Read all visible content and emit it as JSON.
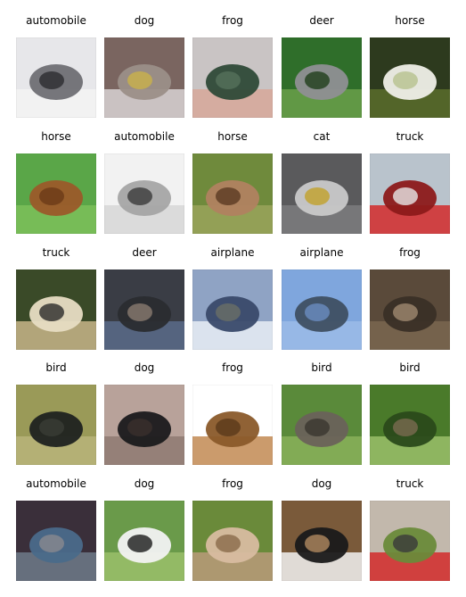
{
  "figure": {
    "rows": [
      [
        {
          "label": "automobile",
          "scene": "white car on road",
          "colors": [
            "#e7e7ea",
            "#f3f3f3",
            "#6f6f74",
            "#2c2c30"
          ]
        },
        {
          "label": "dog",
          "scene": "light dog on brown background",
          "colors": [
            "#7a6560",
            "#d8d2d3",
            "#9b8f88",
            "#c9b24a"
          ]
        },
        {
          "label": "frog",
          "scene": "frog in hand",
          "colors": [
            "#c9c4c4",
            "#d7a89a",
            "#2f4a38",
            "#55705b"
          ]
        },
        {
          "label": "deer",
          "scene": "deer on grass",
          "colors": [
            "#2f6e2a",
            "#6aa04a",
            "#8f8f93",
            "#1f3f1c"
          ]
        },
        {
          "label": "horse",
          "scene": "white horse on grass",
          "colors": [
            "#2d3a1e",
            "#5a6d2c",
            "#efefe8",
            "#b7c28f"
          ]
        }
      ],
      [
        {
          "label": "horse",
          "scene": "brown horse on grass",
          "colors": [
            "#5aa648",
            "#7cbf5a",
            "#9b5a2a",
            "#6b3a18"
          ]
        },
        {
          "label": "automobile",
          "scene": "silver car",
          "colors": [
            "#f2f2f2",
            "#d7d7d7",
            "#a5a5a5",
            "#3a3a3a"
          ]
        },
        {
          "label": "horse",
          "scene": "horse head close-up",
          "colors": [
            "#6f8a3c",
            "#9aa35a",
            "#b08260",
            "#5a3a22"
          ]
        },
        {
          "label": "cat",
          "scene": "cat near doorway",
          "colors": [
            "#5a5a5c",
            "#7c7c7e",
            "#c9c9c9",
            "#c2a12a"
          ]
        },
        {
          "label": "truck",
          "scene": "red fire truck",
          "colors": [
            "#b9c3cc",
            "#d22a2a",
            "#8c1a1a",
            "#e6e6e6"
          ]
        }
      ],
      [
        {
          "label": "truck",
          "scene": "old pickup truck",
          "colors": [
            "#3a4a28",
            "#c8b588",
            "#e7dcc3",
            "#2b2b2b"
          ]
        },
        {
          "label": "deer",
          "scene": "deer by water",
          "colors": [
            "#3a3d45",
            "#5b6b8a",
            "#2a2c30",
            "#8a7a70"
          ]
        },
        {
          "label": "airplane",
          "scene": "airliner on runway",
          "colors": [
            "#8fa3c4",
            "#e9eef6",
            "#3a4a6a",
            "#6a6f66"
          ]
        },
        {
          "label": "airplane",
          "scene": "plane in blue sky",
          "colors": [
            "#7fa6dd",
            "#9bbbe8",
            "#3f4f62",
            "#6a8cc0"
          ]
        },
        {
          "label": "frog",
          "scene": "toad on ground",
          "colors": [
            "#5a4a3a",
            "#7a6650",
            "#3a2f26",
            "#a08a70"
          ]
        }
      ],
      [
        {
          "label": "bird",
          "scene": "ostrich on grass",
          "colors": [
            "#9a9a58",
            "#b8b47a",
            "#1f2220",
            "#3a3c36"
          ]
        },
        {
          "label": "dog",
          "scene": "black dog indoors",
          "colors": [
            "#b8a29a",
            "#8e7a72",
            "#1a1a1c",
            "#3a302c"
          ]
        },
        {
          "label": "frog",
          "scene": "frog in frame",
          "colors": [
            "#ffffff",
            "#c28a52",
            "#8a5a2a",
            "#5a3a1a"
          ]
        },
        {
          "label": "bird",
          "scene": "emu on grass",
          "colors": [
            "#5a8a3a",
            "#8ab05a",
            "#6a625a",
            "#3a3630"
          ]
        },
        {
          "label": "bird",
          "scene": "bird on leaf",
          "colors": [
            "#4a7a2a",
            "#9ac06a",
            "#2a4a1a",
            "#7a6a50"
          ]
        }
      ],
      [
        {
          "label": "automobile",
          "scene": "blue station wagon",
          "colors": [
            "#3a2f3a",
            "#6f7a8a",
            "#4a6a8a",
            "#8a8a8e"
          ]
        },
        {
          "label": "dog",
          "scene": "black and white puppy",
          "colors": [
            "#6a9a4a",
            "#9ac06a",
            "#f2f2f2",
            "#1a1a1a"
          ]
        },
        {
          "label": "frog",
          "scene": "pale frog on leaves",
          "colors": [
            "#6a8a3a",
            "#b89a7a",
            "#d8bca0",
            "#8a6a4a"
          ]
        },
        {
          "label": "dog",
          "scene": "spotted dog sitting",
          "colors": [
            "#7a5a3a",
            "#f2f2f2",
            "#1a1a1a",
            "#b08a60"
          ]
        },
        {
          "label": "truck",
          "scene": "red truck on street",
          "colors": [
            "#c2b8ac",
            "#d22a2a",
            "#6a8a3a",
            "#3a3a3a"
          ]
        }
      ]
    ]
  }
}
